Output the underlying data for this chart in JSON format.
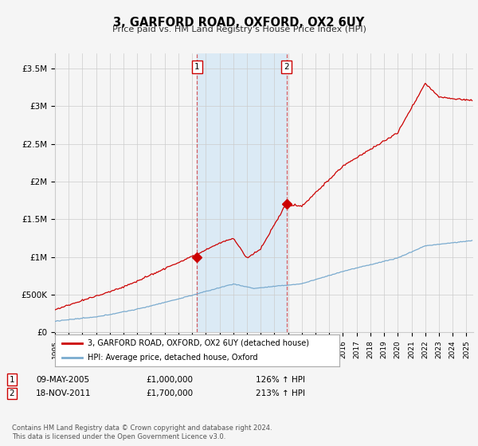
{
  "title": "3, GARFORD ROAD, OXFORD, OX2 6UY",
  "subtitle": "Price paid vs. HM Land Registry's House Price Index (HPI)",
  "ylim": [
    0,
    3700000
  ],
  "xlim_start": 1995.0,
  "xlim_end": 2025.5,
  "sale1_date": 2005.36,
  "sale1_price": 1000000,
  "sale2_date": 2011.88,
  "sale2_price": 1700000,
  "legend_property": "3, GARFORD ROAD, OXFORD, OX2 6UY (detached house)",
  "legend_hpi": "HPI: Average price, detached house, Oxford",
  "footer": "Contains HM Land Registry data © Crown copyright and database right 2024.\nThis data is licensed under the Open Government Licence v3.0.",
  "property_color": "#cc0000",
  "hpi_color": "#7aabcf",
  "shade_color": "#dbeaf5",
  "vline_color": "#cc0000",
  "background_color": "#f5f5f5",
  "grid_color": "#cccccc",
  "ann1_date": "09-MAY-2005",
  "ann1_price": "£1,000,000",
  "ann1_hpi": "126% ↑ HPI",
  "ann2_date": "18-NOV-2011",
  "ann2_price": "£1,700,000",
  "ann2_hpi": "213% ↑ HPI"
}
